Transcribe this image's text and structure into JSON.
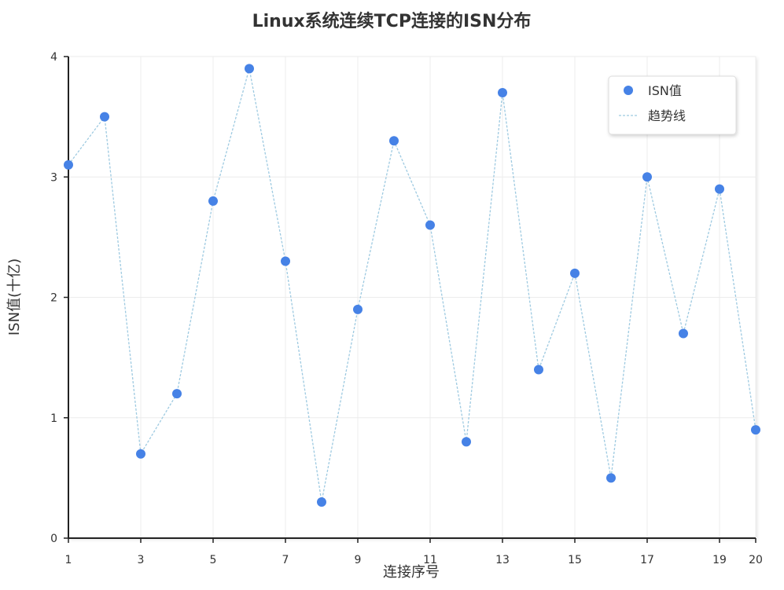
{
  "chart_data": {
    "type": "scatter",
    "title": "Linux系统连续TCP连接的ISN分布",
    "xlabel": "连接序号",
    "ylabel": "ISN值(十亿)",
    "x": [
      1,
      2,
      3,
      4,
      5,
      6,
      7,
      8,
      9,
      10,
      11,
      12,
      13,
      14,
      15,
      16,
      17,
      18,
      19,
      20
    ],
    "series": [
      {
        "name": "ISN值",
        "values": [
          3.1,
          3.5,
          0.7,
          1.2,
          2.8,
          3.9,
          2.3,
          0.3,
          1.9,
          3.3,
          2.6,
          0.8,
          3.7,
          1.4,
          2.2,
          0.5,
          3.0,
          1.7,
          2.9,
          0.9
        ]
      }
    ],
    "trend_label": "趋势线",
    "xticks": [
      "1",
      "3",
      "5",
      "7",
      "9",
      "11",
      "13",
      "15",
      "17",
      "19",
      "20"
    ],
    "yticks": [
      "0",
      "1",
      "2",
      "3",
      "4"
    ],
    "xlim": [
      1,
      20
    ],
    "ylim": [
      0,
      4
    ],
    "grid": true,
    "legend_position": "top-right",
    "colors": {
      "points": "#4682e6",
      "trend": "#9ecae1",
      "axis": "#222222",
      "grid": "#ececec"
    }
  }
}
